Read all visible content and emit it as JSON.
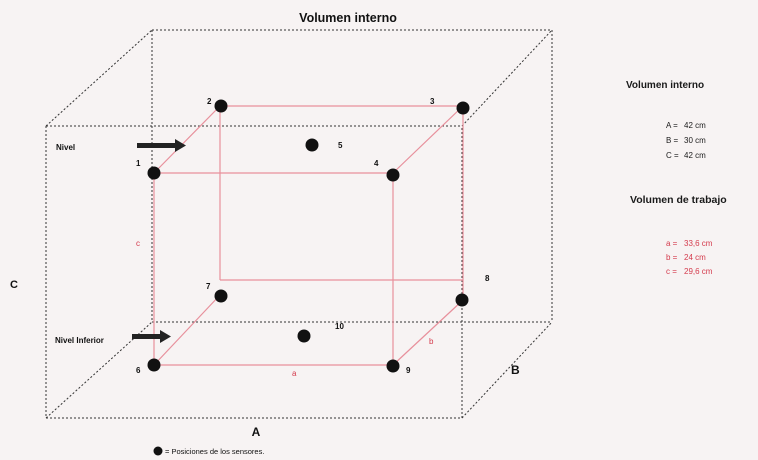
{
  "title": "Volumen interno",
  "dimension_labels": {
    "A": "A",
    "B": "B",
    "C": "C"
  },
  "level_labels": {
    "upper": "Nivel",
    "lower": "Nivel Inferior"
  },
  "inner_dimension_labels": {
    "a": "a",
    "b": "b",
    "c": "c"
  },
  "sensors": [
    {
      "id": "1",
      "label": "1"
    },
    {
      "id": "2",
      "label": "2"
    },
    {
      "id": "3",
      "label": "3"
    },
    {
      "id": "4",
      "label": "4"
    },
    {
      "id": "5",
      "label": "5"
    },
    {
      "id": "6",
      "label": "6"
    },
    {
      "id": "7",
      "label": "7"
    },
    {
      "id": "8",
      "label": "8"
    },
    {
      "id": "9",
      "label": "9"
    },
    {
      "id": "10",
      "label": "10"
    }
  ],
  "legend": {
    "text": "= Posiciones de los sensores."
  },
  "side_panel": {
    "internal_title": "Volumen interno",
    "internal": [
      {
        "key": "A =",
        "value": "42 cm"
      },
      {
        "key": "B =",
        "value": "30 cm"
      },
      {
        "key": "C =",
        "value": "42 cm"
      }
    ],
    "working_title": "Volumen de trabajo",
    "working": [
      {
        "key": "a =",
        "value": "33,6 cm"
      },
      {
        "key": "b =",
        "value": "24 cm"
      },
      {
        "key": "c =",
        "value": "29,6 cm"
      }
    ]
  },
  "colors": {
    "inner_box": "#e8909c",
    "outer_box": "#333333",
    "sensor": "#111111",
    "red_text": "#d43a4c"
  }
}
